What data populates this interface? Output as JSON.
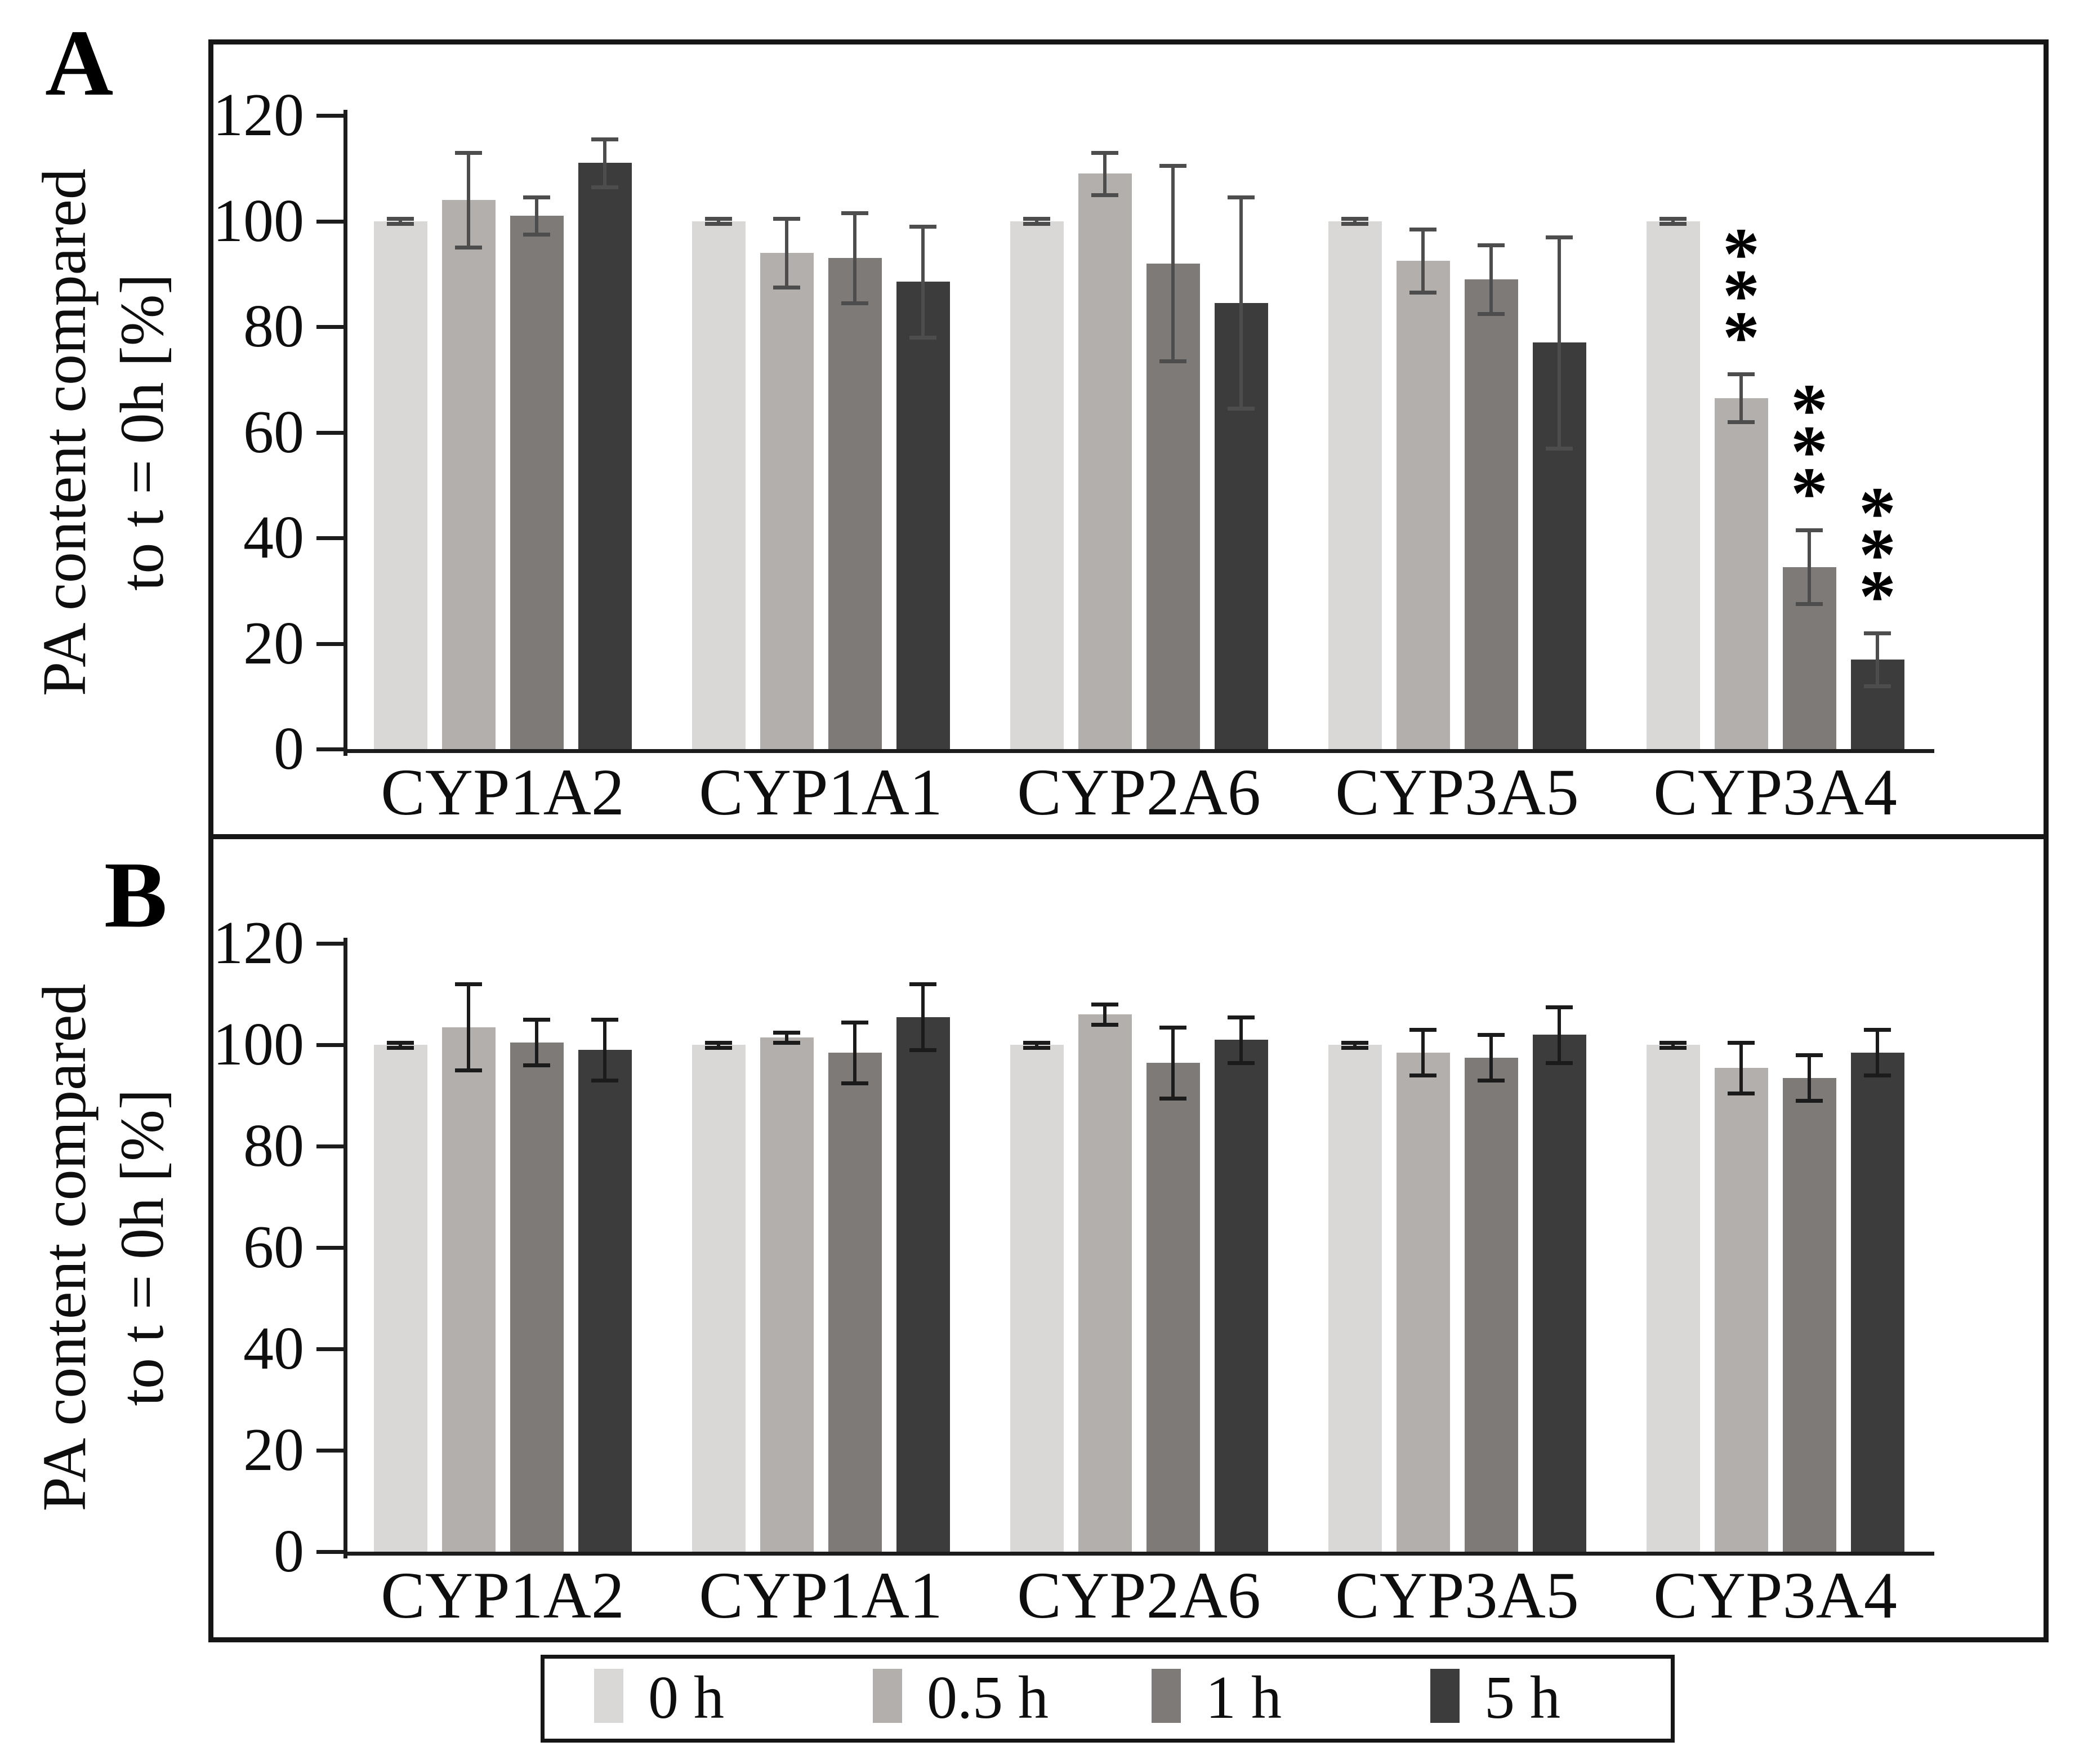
{
  "figure": {
    "panel_a_label": "A",
    "panel_b_label": "B",
    "y_axis_title_line1": "PA content compared",
    "y_axis_title_line2": "to t = 0h [%]"
  },
  "legend": {
    "items": [
      {
        "label": "0 h",
        "color": "#d9d8d6"
      },
      {
        "label": "0.5 h",
        "color": "#b2afac"
      },
      {
        "label": "1 h",
        "color": "#7d7a78"
      },
      {
        "label": "5 h",
        "color": "#3d3c3c"
      }
    ]
  },
  "chart_data": [
    {
      "panel": "A",
      "type": "bar",
      "title": "",
      "xlabel": "",
      "ylabel_lines": [
        "PA content compared",
        "to t = 0h [%]"
      ],
      "ylim": [
        0,
        120
      ],
      "yticks": [
        0,
        20,
        40,
        60,
        80,
        100,
        120
      ],
      "grid": false,
      "legend_position": "bottom-shared",
      "error_bar_color": "#4d4d4d",
      "significance_marker": "***",
      "categories": [
        "CYP1A2",
        "CYP1A1",
        "CYP2A6",
        "CYP3A5",
        "CYP3A4"
      ],
      "series": [
        {
          "name": "0 h",
          "color": "#d9d8d6",
          "values": [
            100,
            100,
            100,
            100,
            100
          ],
          "errors": [
            0.5,
            0.5,
            0.5,
            0.5,
            0.5
          ],
          "sig": [
            "",
            "",
            "",
            "",
            ""
          ]
        },
        {
          "name": "0.5 h",
          "color": "#b2afac",
          "values": [
            104,
            94,
            109,
            92.5,
            66.5
          ],
          "errors": [
            9,
            6.5,
            4,
            6,
            4.5
          ],
          "sig": [
            "",
            "",
            "",
            "",
            "***"
          ]
        },
        {
          "name": "1 h",
          "color": "#7d7a78",
          "values": [
            101,
            93,
            92,
            89,
            34.5
          ],
          "errors": [
            3.5,
            8.5,
            18.5,
            6.5,
            7
          ],
          "sig": [
            "",
            "",
            "",
            "",
            "***"
          ]
        },
        {
          "name": "5 h",
          "color": "#3d3c3c",
          "values": [
            111,
            88.5,
            84.5,
            77,
            17
          ],
          "errors": [
            4.5,
            10.5,
            20,
            20,
            5
          ],
          "sig": [
            "",
            "",
            "",
            "",
            "***"
          ]
        }
      ]
    },
    {
      "panel": "B",
      "type": "bar",
      "title": "",
      "xlabel": "",
      "ylabel_lines": [
        "PA content compared",
        "to t = 0h [%]"
      ],
      "ylim": [
        0,
        120
      ],
      "yticks": [
        0,
        20,
        40,
        60,
        80,
        100,
        120
      ],
      "grid": false,
      "legend_position": "bottom-shared",
      "error_bar_color": "#1b1b1b",
      "significance_marker": "",
      "categories": [
        "CYP1A2",
        "CYP1A1",
        "CYP2A6",
        "CYP3A5",
        "CYP3A4"
      ],
      "series": [
        {
          "name": "0 h",
          "color": "#d9d8d6",
          "values": [
            100,
            100,
            100,
            100,
            100
          ],
          "errors": [
            0.5,
            0.5,
            0.5,
            0.5,
            0.5
          ],
          "sig": [
            "",
            "",
            "",
            "",
            ""
          ]
        },
        {
          "name": "0.5 h",
          "color": "#b2afac",
          "values": [
            103.5,
            101.5,
            106,
            98.5,
            95.5
          ],
          "errors": [
            8.5,
            1,
            2,
            4.5,
            5
          ],
          "sig": [
            "",
            "",
            "",
            "",
            ""
          ]
        },
        {
          "name": "1 h",
          "color": "#7d7a78",
          "values": [
            100.5,
            98.5,
            96.5,
            97.5,
            93.5
          ],
          "errors": [
            4.5,
            6,
            7,
            4.5,
            4.5
          ],
          "sig": [
            "",
            "",
            "",
            "",
            ""
          ]
        },
        {
          "name": "5 h",
          "color": "#3d3c3c",
          "values": [
            99,
            105.5,
            101,
            102,
            98.5
          ],
          "errors": [
            6,
            6.5,
            4.5,
            5.5,
            4.5
          ],
          "sig": [
            "",
            "",
            "",
            "",
            ""
          ]
        }
      ]
    }
  ]
}
